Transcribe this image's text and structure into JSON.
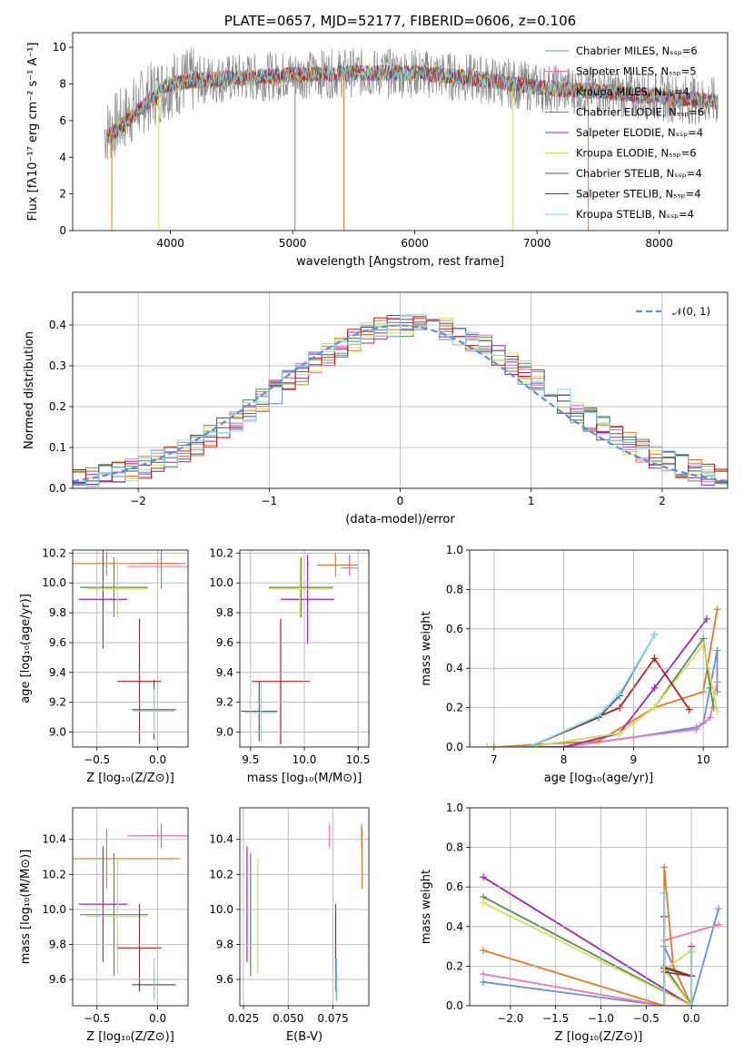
{
  "chart_data": [
    {
      "type": "line",
      "title": "PLATE=0657, MJD=52177, FIBERID=0606, z=0.106",
      "xlabel": "wavelength [Angstrom, rest frame]",
      "ylabel": "Flux [fλ10⁻¹⁷ erg cm⁻² s⁻¹ A⁻¹]",
      "xlim": [
        3200,
        8560
      ],
      "ylim": [
        0,
        10.8
      ],
      "xticks": [
        4000,
        5000,
        6000,
        7000,
        8000
      ],
      "yticks": [
        0,
        2,
        4,
        6,
        8,
        10
      ],
      "data_series_name": "data",
      "legend": [
        {
          "label": "Chabrier MILES, Nₛₛₚ=6",
          "color": "#6b8dd6"
        },
        {
          "label": "Salpeter MILES, Nₛₛₚ=5",
          "color": "#e879b4"
        },
        {
          "label": "Kroupa MILES, Nₛₛₚ=4",
          "color": "#e07b2a"
        },
        {
          "label": "Chabrier ELODIE, Nₛₛₚ=6",
          "color": "#5a8a5a"
        },
        {
          "label": "Salpeter ELODIE, Nₛₛₚ=4",
          "color": "#9c27b0"
        },
        {
          "label": "Kroupa ELODIE, Nₛₛₚ=6",
          "color": "#d4e157"
        },
        {
          "label": "Chabrier STELIB, Nₛₛₚ=4",
          "color": "#555555"
        },
        {
          "label": "Salpeter STELIB, Nₛₛₚ=4",
          "color": "#b71c1c"
        },
        {
          "label": "Kroupa STELIB, Nₛₛₚ=4",
          "color": "#80deea"
        }
      ],
      "legend_position": "upper-right",
      "continuum": [
        [
          3460,
          5.3
        ],
        [
          3600,
          6.0
        ],
        [
          3800,
          7.2
        ],
        [
          4000,
          8.0
        ],
        [
          4200,
          8.2
        ],
        [
          4500,
          8.3
        ],
        [
          5000,
          8.5
        ],
        [
          5500,
          8.6
        ],
        [
          6000,
          8.6
        ],
        [
          6500,
          8.3
        ],
        [
          7000,
          7.8
        ],
        [
          7500,
          7.6
        ],
        [
          8000,
          7.3
        ],
        [
          8500,
          7.0
        ]
      ]
    },
    {
      "type": "line",
      "xlabel": "(data-model)/error",
      "ylabel": "Normed distribution",
      "xlim": [
        -2.5,
        2.5
      ],
      "ylim": [
        0,
        0.48
      ],
      "xticks": [
        -2,
        -1,
        0,
        1,
        2
      ],
      "yticks": [
        0.0,
        0.1,
        0.2,
        0.3,
        0.4
      ],
      "legend": [
        {
          "label": "𝒩(0, 1)",
          "color": "#5b8fd9"
        }
      ],
      "legend_position": "upper-right",
      "hist_bin_width": 0.1
    },
    {
      "type": "scatter",
      "xlabel": "Z [log₁₀(Z/Z⊙)]",
      "ylabel": "age  [log₁₀(age/yr)]",
      "xlim": [
        -0.7,
        0.25
      ],
      "ylim": [
        8.9,
        10.22
      ],
      "xticks": [
        -0.5,
        0.0
      ],
      "yticks": [
        9.0,
        9.2,
        9.4,
        9.6,
        9.8,
        10.0,
        10.2
      ],
      "points": [
        {
          "model": "Chabrier MILES",
          "x": 0.03,
          "xerr": 0.2,
          "y": 10.13,
          "yerr": 0.17
        },
        {
          "model": "Salpeter MILES",
          "x": 0.0,
          "xerr": 0.25,
          "y": 10.11,
          "yerr": 0.05
        },
        {
          "model": "Kroupa MILES",
          "x": -0.42,
          "xerr": 0.6,
          "y": 10.13,
          "yerr": 0.08
        },
        {
          "model": "Chabrier ELODIE",
          "x": -0.36,
          "xerr": 0.28,
          "y": 9.97,
          "yerr": 0.2
        },
        {
          "model": "Salpeter ELODIE",
          "x": -0.45,
          "xerr": 0.2,
          "y": 9.89,
          "yerr": 0.33
        },
        {
          "model": "Kroupa ELODIE",
          "x": -0.33,
          "xerr": 0.25,
          "y": 9.96,
          "yerr": 0.2
        },
        {
          "model": "Chabrier STELIB",
          "x": -0.03,
          "xerr": 0.18,
          "y": 9.15,
          "yerr": 0.2
        },
        {
          "model": "Salpeter STELIB",
          "x": -0.15,
          "xerr": 0.18,
          "y": 9.34,
          "yerr": 0.42
        },
        {
          "model": "Kroupa STELIB",
          "x": -0.03,
          "xerr": 0.17,
          "y": 9.14,
          "yerr": 0.15
        }
      ]
    },
    {
      "type": "scatter",
      "xlabel": "mass [log₁₀(M/M⊙)]",
      "ylabel": "",
      "xlim": [
        9.4,
        10.6
      ],
      "ylim": [
        8.9,
        10.22
      ],
      "xticks": [
        9.5,
        10.0,
        10.5
      ],
      "yticks": [
        9.0,
        9.2,
        9.4,
        9.6,
        9.8,
        10.0,
        10.2
      ],
      "points": [
        {
          "model": "Chabrier MILES",
          "x": 10.42,
          "xerr": 0.08,
          "y": 10.12,
          "yerr": 0.07
        },
        {
          "model": "Salpeter MILES",
          "x": 10.42,
          "xerr": 0.08,
          "y": 10.1,
          "yerr": 0.05
        },
        {
          "model": "Kroupa MILES",
          "x": 10.29,
          "xerr": 0.17,
          "y": 10.12,
          "yerr": 0.08
        },
        {
          "model": "Chabrier ELODIE",
          "x": 9.97,
          "xerr": 0.3,
          "y": 9.97,
          "yerr": 0.2
        },
        {
          "model": "Salpeter ELODIE",
          "x": 10.03,
          "xerr": 0.25,
          "y": 9.89,
          "yerr": 0.3
        },
        {
          "model": "Kroupa ELODIE",
          "x": 9.96,
          "xerr": 0.3,
          "y": 9.96,
          "yerr": 0.2
        },
        {
          "model": "Chabrier STELIB",
          "x": 9.58,
          "xerr": 0.17,
          "y": 9.14,
          "yerr": 0.2
        },
        {
          "model": "Salpeter STELIB",
          "x": 9.78,
          "xerr": 0.27,
          "y": 9.34,
          "yerr": 0.42
        },
        {
          "model": "Kroupa STELIB",
          "x": 9.6,
          "xerr": 0.15,
          "y": 9.13,
          "yerr": 0.2
        }
      ]
    },
    {
      "type": "line",
      "xlabel": "age  [log₁₀(age/yr)]",
      "ylabel": "mass weight",
      "xlim": [
        6.65,
        10.35
      ],
      "ylim": [
        0,
        1.0
      ],
      "xticks": [
        7,
        8,
        9,
        10
      ],
      "yticks": [
        0.0,
        0.2,
        0.4,
        0.6,
        0.8,
        1.0
      ],
      "series": [
        {
          "model": "Chabrier MILES",
          "x": [
            7.0,
            8.0,
            9.0,
            9.9,
            10.0,
            10.2,
            10.2
          ],
          "y": [
            0.0,
            0.0,
            0.05,
            0.1,
            0.12,
            0.49,
            0.28
          ]
        },
        {
          "model": "Salpeter MILES",
          "x": [
            7.0,
            8.0,
            9.0,
            9.9,
            10.1,
            10.2
          ],
          "y": [
            0.0,
            0.0,
            0.05,
            0.09,
            0.15,
            0.33
          ]
        },
        {
          "model": "Kroupa MILES",
          "x": [
            7.0,
            8.5,
            9.3,
            10.0,
            10.2
          ],
          "y": [
            0.0,
            0.03,
            0.2,
            0.28,
            0.7
          ]
        },
        {
          "model": "Chabrier ELODIE",
          "x": [
            6.9,
            7.5,
            8.8,
            9.3,
            10.0,
            10.1,
            10.15
          ],
          "y": [
            0.0,
            0.0,
            0.07,
            0.2,
            0.55,
            0.3,
            0.2
          ]
        },
        {
          "model": "Salpeter ELODIE",
          "x": [
            7.0,
            8.0,
            8.8,
            9.3,
            10.05
          ],
          "y": [
            0.0,
            0.0,
            0.07,
            0.3,
            0.65
          ]
        },
        {
          "model": "Kroupa ELODIE",
          "x": [
            6.9,
            7.5,
            8.8,
            9.3,
            10.0,
            10.15,
            10.2
          ],
          "y": [
            0.0,
            0.0,
            0.07,
            0.2,
            0.52,
            0.28,
            0.18
          ]
        },
        {
          "model": "Chabrier STELIB",
          "x": [
            7.5,
            8.5,
            8.8,
            9.3
          ],
          "y": [
            0.0,
            0.15,
            0.26,
            0.57
          ]
        },
        {
          "model": "Salpeter STELIB",
          "x": [
            7.5,
            8.8,
            9.3,
            9.8
          ],
          "y": [
            0.0,
            0.2,
            0.45,
            0.19
          ]
        },
        {
          "model": "Kroupa STELIB",
          "x": [
            7.5,
            8.5,
            8.8,
            9.3
          ],
          "y": [
            0.0,
            0.16,
            0.27,
            0.57
          ]
        }
      ]
    },
    {
      "type": "scatter",
      "xlabel": "Z [log₁₀(Z/Z⊙)]",
      "ylabel": "mass [log₁₀(M/M⊙)]",
      "xlim": [
        -0.7,
        0.25
      ],
      "ylim": [
        9.45,
        10.58
      ],
      "xticks": [
        -0.5,
        0.0
      ],
      "yticks": [
        9.6,
        9.8,
        10.0,
        10.2,
        10.4
      ],
      "points": [
        {
          "model": "Chabrier MILES",
          "x": 0.03,
          "xerr": 0.2,
          "y": 10.42,
          "yerr": 0.07
        },
        {
          "model": "Salpeter MILES",
          "x": 0.0,
          "xerr": 0.25,
          "y": 10.42,
          "yerr": 0.05
        },
        {
          "model": "Kroupa MILES",
          "x": -0.42,
          "xerr": 0.6,
          "y": 10.29,
          "yerr": 0.17
        },
        {
          "model": "Chabrier ELODIE",
          "x": -0.36,
          "xerr": 0.28,
          "y": 9.97,
          "yerr": 0.35
        },
        {
          "model": "Salpeter ELODIE",
          "x": -0.45,
          "xerr": 0.2,
          "y": 10.03,
          "yerr": 0.33
        },
        {
          "model": "Kroupa ELODIE",
          "x": -0.33,
          "xerr": 0.25,
          "y": 9.96,
          "yerr": 0.33
        },
        {
          "model": "Chabrier STELIB",
          "x": -0.03,
          "xerr": 0.18,
          "y": 9.57,
          "yerr": 0.08
        },
        {
          "model": "Salpeter STELIB",
          "x": -0.15,
          "xerr": 0.18,
          "y": 9.78,
          "yerr": 0.25
        },
        {
          "model": "Kroupa STELIB",
          "x": -0.03,
          "xerr": 0.17,
          "y": 9.6,
          "yerr": 0.12
        }
      ]
    },
    {
      "type": "scatter",
      "xlabel": "E(B-V)",
      "ylabel": "",
      "xlim": [
        0.023,
        0.095
      ],
      "ylim": [
        9.45,
        10.58
      ],
      "xticks": [
        0.025,
        0.05,
        0.075
      ],
      "yticks": [
        9.6,
        9.8,
        10.0,
        10.2,
        10.4
      ],
      "points": [
        {
          "model": "Chabrier MILES",
          "x": 0.091,
          "y": 10.42,
          "yerr": 0.07
        },
        {
          "model": "Salpeter MILES",
          "x": 0.073,
          "y": 10.42,
          "yerr": 0.07
        },
        {
          "model": "Kroupa MILES",
          "x": 0.0912,
          "y": 10.29,
          "yerr": 0.17
        },
        {
          "model": "Chabrier ELODIE",
          "x": 0.029,
          "y": 9.97,
          "yerr": 0.35
        },
        {
          "model": "Salpeter ELODIE",
          "x": 0.027,
          "y": 10.03,
          "yerr": 0.33
        },
        {
          "model": "Kroupa ELODIE",
          "x": 0.033,
          "y": 9.96,
          "yerr": 0.33
        },
        {
          "model": "Chabrier STELIB",
          "x": 0.077,
          "y": 9.6,
          "yerr": 0.12
        },
        {
          "model": "Salpeter STELIB",
          "x": 0.0765,
          "y": 9.78,
          "yerr": 0.25
        },
        {
          "model": "Kroupa STELIB",
          "x": 0.0768,
          "y": 9.6,
          "yerr": 0.12
        }
      ]
    },
    {
      "type": "line",
      "xlabel": "Z [log₁₀(Z/Z⊙)]",
      "ylabel": "mass weight",
      "xlim": [
        -2.45,
        0.4
      ],
      "ylim": [
        0,
        1.0
      ],
      "xticks": [
        -2.0,
        -1.5,
        -1.0,
        -0.5,
        0.0
      ],
      "yticks": [
        0.0,
        0.2,
        0.4,
        0.6,
        0.8,
        1.0
      ],
      "series": [
        {
          "model": "Chabrier MILES",
          "x": [
            -2.3,
            -0.3,
            -0.3,
            0.0,
            0.3
          ],
          "y": [
            0.12,
            0.0,
            0.3,
            0.0,
            0.49
          ]
        },
        {
          "model": "Salpeter MILES",
          "x": [
            -2.3,
            -0.3,
            -0.3,
            0.3
          ],
          "y": [
            0.16,
            0.0,
            0.33,
            0.41
          ]
        },
        {
          "model": "Kroupa MILES",
          "x": [
            -2.3,
            -0.3,
            -0.3,
            -0.2,
            0.0
          ],
          "y": [
            0.28,
            0.0,
            0.7,
            0.2,
            0.0
          ]
        },
        {
          "model": "Chabrier ELODIE",
          "x": [
            -2.3,
            0.0,
            -0.3,
            0.0
          ],
          "y": [
            0.55,
            0.0,
            0.2,
            0.15
          ]
        },
        {
          "model": "Salpeter ELODIE",
          "x": [
            -2.3,
            0.0,
            0.0
          ],
          "y": [
            0.65,
            0.0,
            0.3
          ]
        },
        {
          "model": "Kroupa ELODIE",
          "x": [
            -2.3,
            0.0,
            -0.3,
            0.0
          ],
          "y": [
            0.52,
            0.0,
            0.18,
            0.28
          ]
        },
        {
          "model": "Chabrier STELIB",
          "x": [
            -0.3,
            -0.3,
            0.0
          ],
          "y": [
            0.57,
            0.17,
            0.15
          ]
        },
        {
          "model": "Salpeter STELIB",
          "x": [
            -0.3,
            -0.3,
            -0.3,
            0.0
          ],
          "y": [
            0.0,
            0.45,
            0.19,
            0.15
          ]
        },
        {
          "model": "Kroupa STELIB",
          "x": [
            -0.3,
            -0.3,
            0.0,
            0.0
          ],
          "y": [
            0.57,
            0.0,
            0.0,
            0.27
          ]
        }
      ]
    }
  ]
}
